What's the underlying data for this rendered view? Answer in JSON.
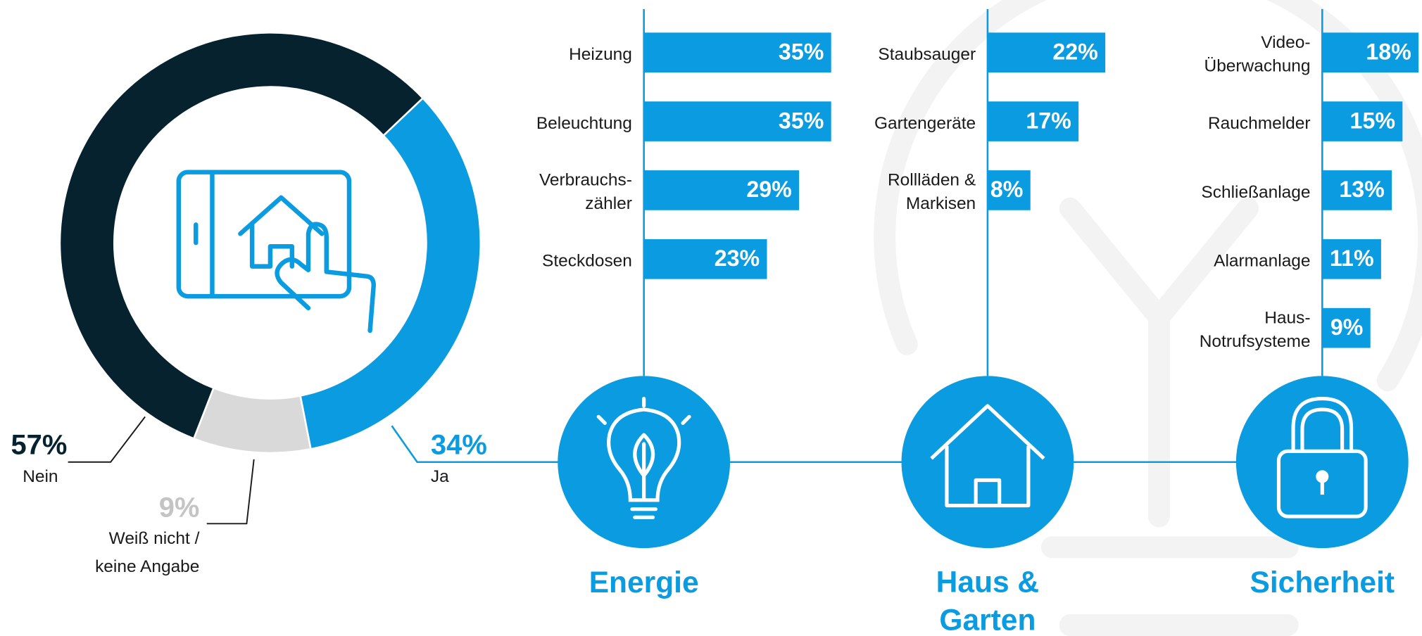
{
  "chart_data": [
    {
      "type": "pie",
      "categories": [
        "Ja",
        "Weiß nicht /\nkeine Angabe",
        "Nein"
      ],
      "values": [
        34,
        9,
        57
      ],
      "value_labels": [
        "34%",
        "9%",
        "57%"
      ],
      "colors": [
        "#0a9be0",
        "#d9d9d9",
        "#06222e"
      ]
    },
    {
      "type": "bar",
      "title": "Energie",
      "categories": [
        "Heizung",
        "Beleuchtung",
        "Verbrauchs-\nzähler",
        "Steckdosen"
      ],
      "values": [
        35,
        35,
        29,
        23
      ],
      "value_labels": [
        "35%",
        "35%",
        "29%",
        "23%"
      ],
      "color": "#0a9be0"
    },
    {
      "type": "bar",
      "title": "Haus &\nGarten",
      "categories": [
        "Staubsauger",
        "Gartengeräte",
        "Rollläden &\nMarkisen"
      ],
      "values": [
        22,
        17,
        8
      ],
      "value_labels": [
        "22%",
        "17%",
        "8%"
      ],
      "color": "#0a9be0"
    },
    {
      "type": "bar",
      "title": "Sicherheit",
      "categories": [
        "Video-\nÜberwachung",
        "Rauchmelder",
        "Schließanlage",
        "Alarmanlage",
        "Haus-\nNotrufsysteme"
      ],
      "values": [
        18,
        15,
        13,
        11,
        9
      ],
      "value_labels": [
        "18%",
        "15%",
        "13%",
        "11%",
        "9%"
      ],
      "color": "#0a9be0"
    }
  ]
}
